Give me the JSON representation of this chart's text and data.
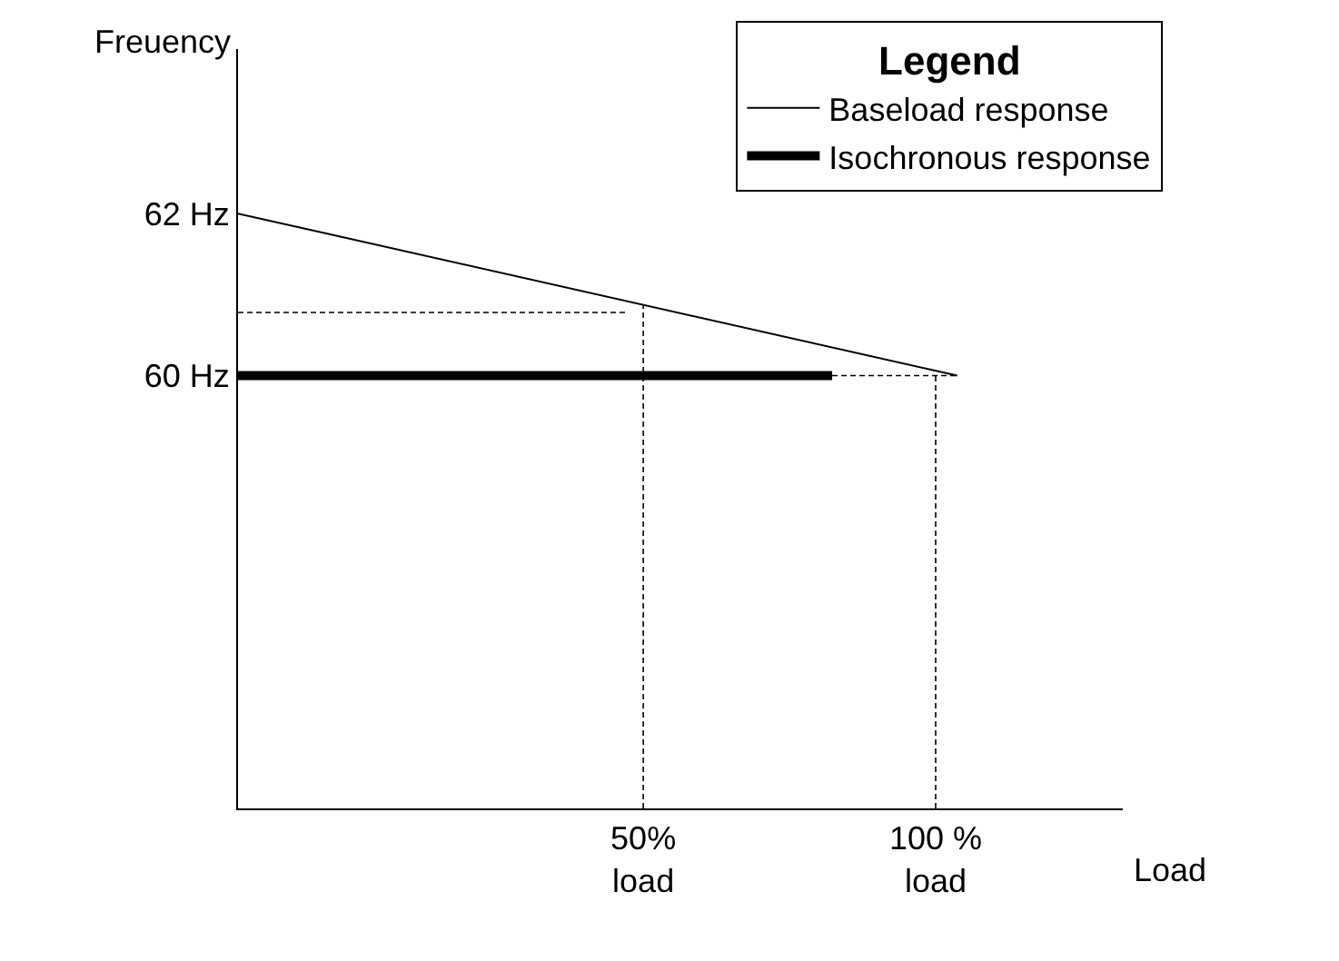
{
  "chart_data": {
    "type": "line",
    "xlabel": "Load",
    "ylabel": "Freuency",
    "legend_title": "Legend",
    "legend": "top right",
    "marker": "none",
    "xlim": [
      -19.3,
      132
    ],
    "ylim": [
      54.66,
      64.03
    ],
    "xticks": [
      {
        "value": 50,
        "label": "50%\nload"
      },
      {
        "value": 100,
        "label": "100 %\nload"
      }
    ],
    "yticks": [
      {
        "value": 60,
        "label": "60 Hz"
      },
      {
        "value": 62,
        "label": "62 Hz"
      }
    ],
    "series": [
      {
        "name": "Baseload response",
        "color": "#000000",
        "x": [
          -19.3,
          103.7
        ],
        "values": [
          62,
          60
        ],
        "line_style": "solid"
      },
      {
        "name": "Isochronous response",
        "color": "#000000",
        "x": [
          -19.3,
          82.3
        ],
        "values": [
          60,
          60
        ],
        "line_style": "solid"
      },
      {
        "color": "#000000",
        "x": [
          -19.3,
          46.9
        ],
        "values": [
          60.78,
          60.78
        ],
        "line_style": "dashed"
      },
      {
        "color": "#000000",
        "x": [
          50,
          50
        ],
        "values": [
          54.66,
          60.87
        ],
        "line_style": "dashed"
      },
      {
        "color": "#000000",
        "x": [
          82.3,
          103.7
        ],
        "values": [
          60,
          60
        ],
        "line_style": "dashed"
      },
      {
        "color": "#000000",
        "x": [
          100,
          100
        ],
        "values": [
          54.66,
          60
        ],
        "line_style": "dashed"
      }
    ]
  }
}
